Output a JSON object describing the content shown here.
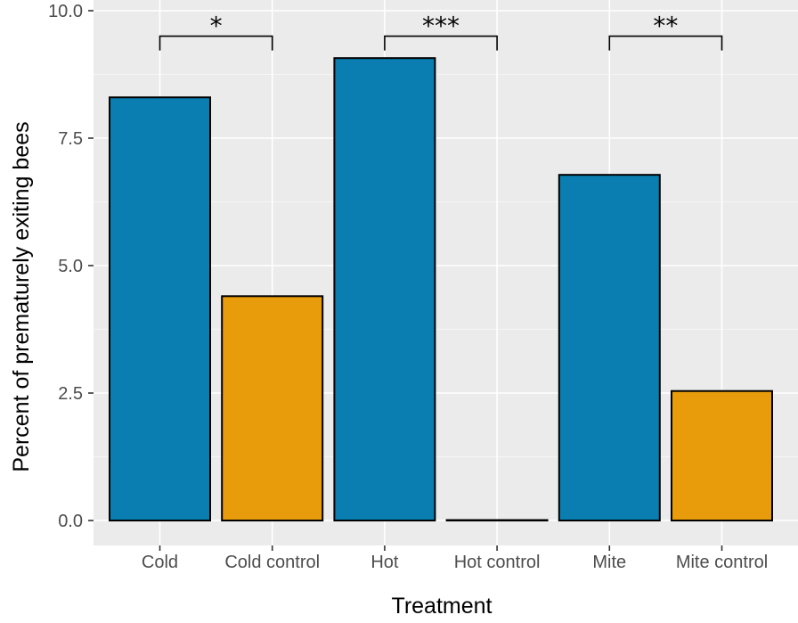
{
  "chart_data": {
    "type": "bar",
    "title": "",
    "xlabel": "Treatment",
    "ylabel": "Percent of prematurely exiting bees",
    "ylim": [
      0,
      10
    ],
    "yticks": [
      "0.0",
      "2.5",
      "5.0",
      "7.5",
      "10.0"
    ],
    "ytick_values": [
      0,
      2.5,
      5,
      7.5,
      10
    ],
    "grid": true,
    "legend": "none",
    "categories": [
      "Cold",
      "Cold control",
      "Hot",
      "Hot control",
      "Mite",
      "Mite control"
    ],
    "values": [
      8.3,
      4.4,
      9.07,
      0.0,
      6.78,
      2.54
    ],
    "bar_colors": [
      "#0a7eb0",
      "#e89c0c",
      "#0a7eb0",
      "#e89c0c",
      "#0a7eb0",
      "#e89c0c"
    ],
    "annotations": [
      {
        "from": "Cold",
        "to": "Cold control",
        "label": "*",
        "y": 9.5
      },
      {
        "from": "Hot",
        "to": "Hot control",
        "label": "***",
        "y": 9.5
      },
      {
        "from": "Mite",
        "to": "Mite control",
        "label": "**",
        "y": 9.5
      }
    ]
  },
  "colors": {
    "panel_background": "#ebebeb",
    "grid_major": "#ffffff",
    "bar_outline": "#000000",
    "tick_text": "#4d4d4d"
  }
}
